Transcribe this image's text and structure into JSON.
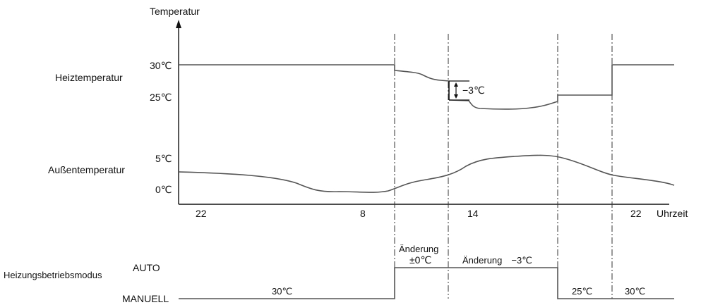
{
  "y_axis_label": "Temperatur",
  "x_axis_label": "Uhrzeit",
  "x_ticks": [
    "22",
    "8",
    "14",
    "22"
  ],
  "heat_section": {
    "label": "Heiztemperatur",
    "ticks": [
      "30℃",
      "25℃"
    ],
    "change_annotation": "−3℃"
  },
  "outdoor_section": {
    "label": "Außentemperatur",
    "ticks": [
      "5℃",
      "0℃"
    ]
  },
  "mode_section": {
    "label": "Heizungsbetriebsmodus",
    "auto_label": "AUTO",
    "manual_label": "MANUELL",
    "change_zero_line1": "Änderung",
    "change_zero_line2": "±0℃",
    "change_minus": "Änderung　−3℃",
    "manual_30_left": "30℃",
    "manual_25": "25℃",
    "manual_30_right": "30℃"
  },
  "colors": {
    "curve": "#555555",
    "axis": "#111111",
    "background": "#ffffff"
  }
}
